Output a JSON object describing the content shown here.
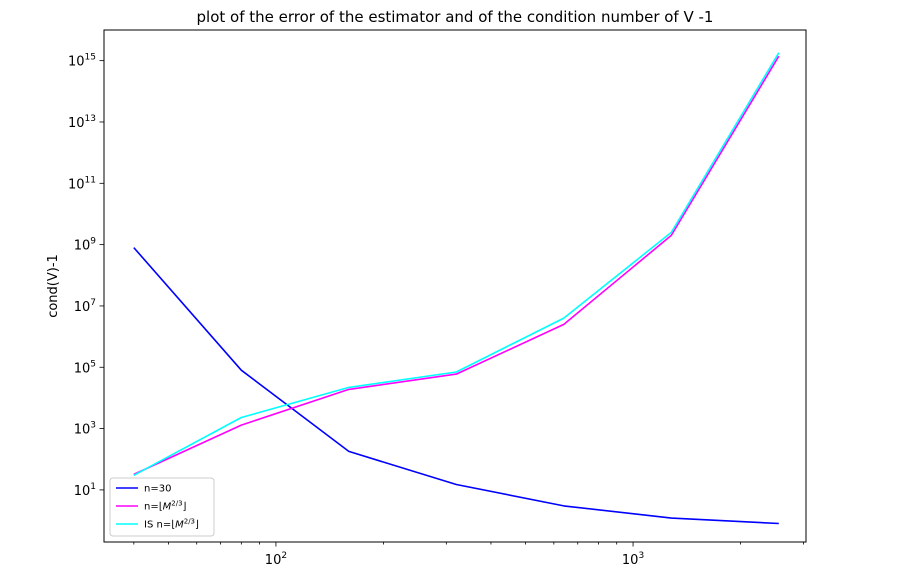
{
  "chart_data": {
    "type": "line",
    "title": "plot of the error of the estimator and of the condition number of V -1",
    "ylabel": "cond(V)-1",
    "xlabel": "",
    "xscale": "log",
    "yscale": "log",
    "xlim": [
      33,
      3050
    ],
    "ylim": [
      0.2,
      1e+16
    ],
    "x": [
      40,
      80,
      160,
      320,
      640,
      1280,
      2560
    ],
    "x_ticks": [
      {
        "value": 100,
        "base": "10",
        "exp": "2"
      },
      {
        "value": 1000,
        "base": "10",
        "exp": "3"
      }
    ],
    "y_ticks": [
      {
        "value": 10,
        "base": "10",
        "exp": "1"
      },
      {
        "value": 1000,
        "base": "10",
        "exp": "3"
      },
      {
        "value": 100000,
        "base": "10",
        "exp": "5"
      },
      {
        "value": 10000000,
        "base": "10",
        "exp": "7"
      },
      {
        "value": 1000000000,
        "base": "10",
        "exp": "9"
      },
      {
        "value": 100000000000,
        "base": "10",
        "exp": "11"
      },
      {
        "value": 10000000000000,
        "base": "10",
        "exp": "13"
      },
      {
        "value": 1000000000000000,
        "base": "10",
        "exp": "15"
      }
    ],
    "series": [
      {
        "name": "n=30",
        "color": "#0000ff",
        "values": [
          800000000,
          80000,
          180,
          15,
          3,
          1.2,
          0.8
        ]
      },
      {
        "name": "n=⌊M^(2/3)⌋",
        "legend_prefix": "n=",
        "color": "#ff00ff",
        "values": [
          32,
          1300,
          19000,
          60000,
          2500000,
          2000000000,
          1400000000000000
        ]
      },
      {
        "name": "IS n=⌊M^(2/3)⌋",
        "legend_prefix": "IS n=",
        "color": "#00ffff",
        "values": [
          30,
          2300,
          22000,
          70000,
          4000000,
          2500000000,
          1800000000000000
        ]
      }
    ],
    "legend": {
      "position": "lower-left"
    },
    "grid": false
  }
}
